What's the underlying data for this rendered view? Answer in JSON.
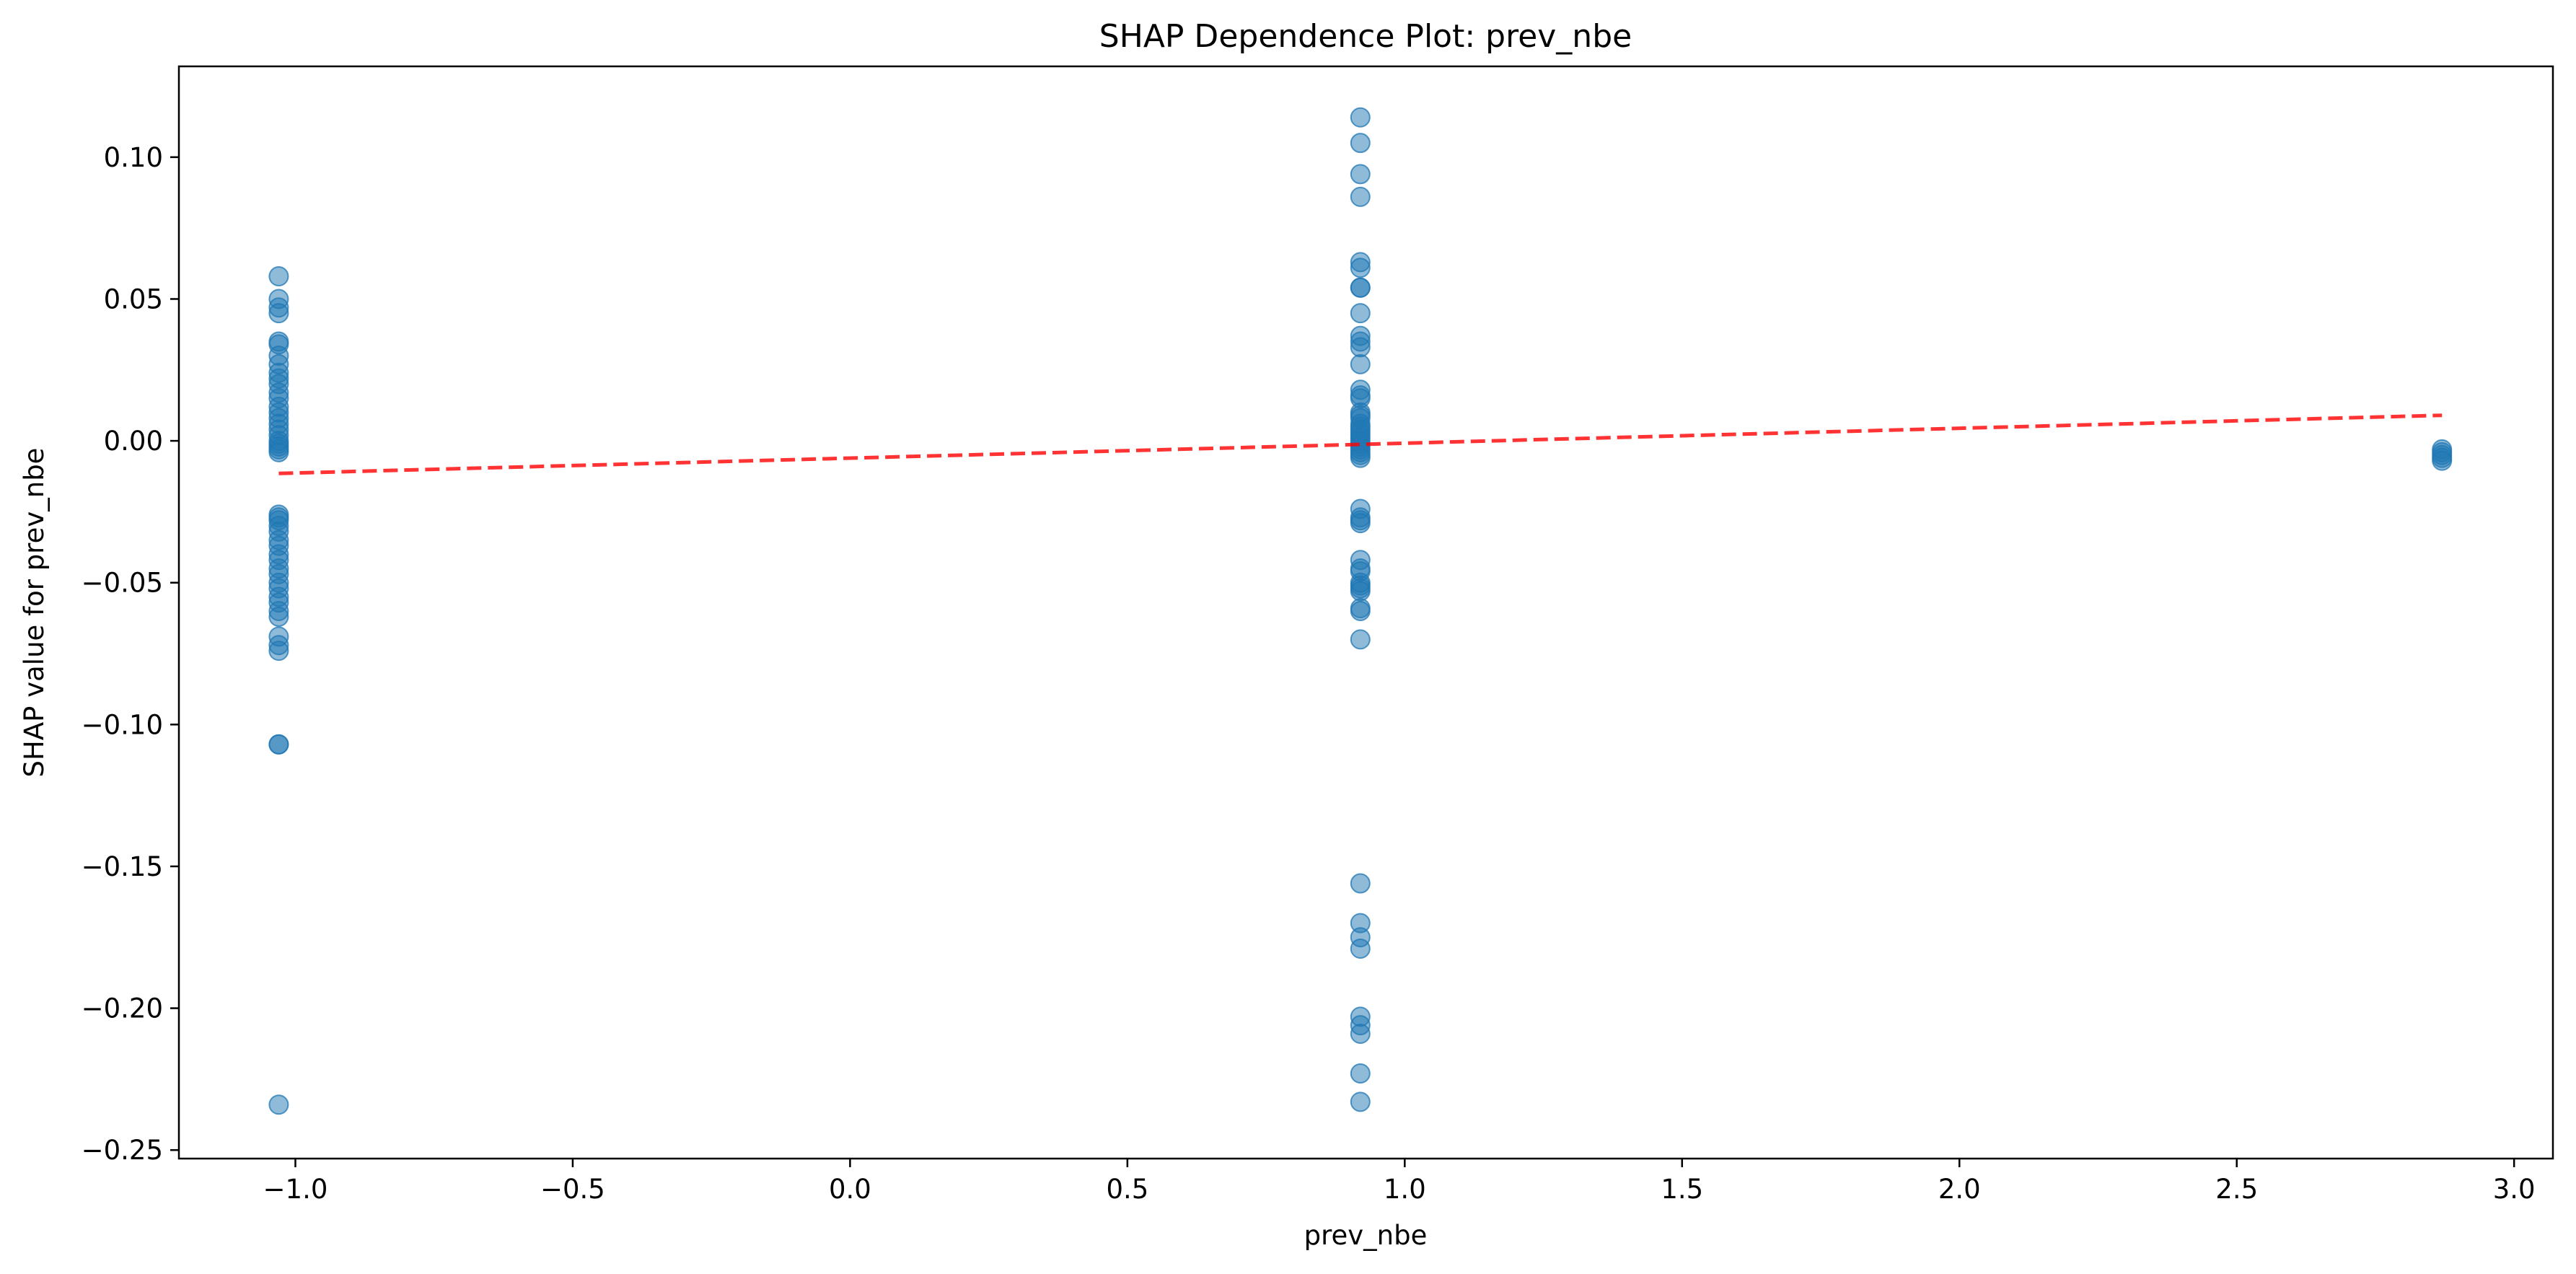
{
  "chart_data": {
    "type": "scatter",
    "title": "SHAP Dependence Plot: prev_nbe",
    "xlabel": "prev_nbe",
    "ylabel": "SHAP value for prev_nbe",
    "xlim": [
      -1.21,
      3.07
    ],
    "ylim": [
      -0.253,
      0.132
    ],
    "xticks": [
      {
        "value": -1.0,
        "label": "−1.0"
      },
      {
        "value": -0.5,
        "label": "−0.5"
      },
      {
        "value": 0.0,
        "label": "0.0"
      },
      {
        "value": 0.5,
        "label": "0.5"
      },
      {
        "value": 1.0,
        "label": "1.0"
      },
      {
        "value": 1.5,
        "label": "1.5"
      },
      {
        "value": 2.0,
        "label": "2.0"
      },
      {
        "value": 2.5,
        "label": "2.5"
      },
      {
        "value": 3.0,
        "label": "3.0"
      }
    ],
    "yticks": [
      {
        "value": -0.25,
        "label": "−0.25"
      },
      {
        "value": -0.2,
        "label": "−0.20"
      },
      {
        "value": -0.15,
        "label": "−0.15"
      },
      {
        "value": -0.1,
        "label": "−0.10"
      },
      {
        "value": -0.05,
        "label": "−0.05"
      },
      {
        "value": 0.0,
        "label": "0.00"
      },
      {
        "value": 0.05,
        "label": "0.05"
      },
      {
        "value": 0.1,
        "label": "0.10"
      }
    ],
    "grid": false,
    "point_color": "#1f77b4",
    "point_alpha": 0.5,
    "trend_color": "#ff0000",
    "series": [
      {
        "x": -1.03,
        "y": [
          0.058,
          0.05,
          0.047,
          0.045,
          0.035,
          0.034,
          0.03,
          0.027,
          0.024,
          0.022,
          0.02,
          0.017,
          0.015,
          0.012,
          0.01,
          0.008,
          0.006,
          0.004,
          0.002,
          0.0,
          -0.001,
          -0.002,
          -0.003,
          -0.004,
          -0.026,
          -0.027,
          -0.028,
          -0.03,
          -0.032,
          -0.035,
          -0.037,
          -0.04,
          -0.042,
          -0.045,
          -0.047,
          -0.05,
          -0.052,
          -0.055,
          -0.057,
          -0.06,
          -0.062,
          -0.069,
          -0.072,
          -0.074,
          -0.107,
          -0.107,
          -0.234
        ]
      },
      {
        "x": 0.92,
        "y": [
          0.114,
          0.105,
          0.094,
          0.086,
          0.063,
          0.061,
          0.054,
          0.054,
          0.045,
          0.037,
          0.035,
          0.033,
          0.027,
          0.018,
          0.016,
          0.015,
          0.01,
          0.009,
          0.008,
          0.006,
          0.005,
          0.004,
          0.003,
          0.002,
          0.001,
          0.0,
          -0.001,
          -0.002,
          -0.003,
          -0.004,
          -0.005,
          -0.006,
          -0.024,
          -0.027,
          -0.028,
          -0.029,
          -0.042,
          -0.045,
          -0.046,
          -0.05,
          -0.051,
          -0.052,
          -0.053,
          -0.059,
          -0.06,
          -0.07,
          -0.156,
          -0.17,
          -0.175,
          -0.179,
          -0.203,
          -0.206,
          -0.209,
          -0.223,
          -0.233
        ]
      },
      {
        "x": 2.87,
        "y": [
          -0.003,
          -0.004,
          -0.005,
          -0.006,
          -0.007
        ]
      }
    ],
    "trend_line": {
      "x": [
        -1.03,
        2.87
      ],
      "y": [
        -0.0115,
        0.009
      ]
    }
  }
}
